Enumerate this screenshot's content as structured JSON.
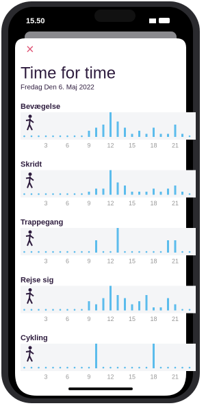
{
  "status": {
    "time": "15.50"
  },
  "header": {
    "close": "×",
    "title": "Time for time",
    "subtitle": "Fredag Den 6. Maj 2022"
  },
  "charts": [
    {
      "type": "bar",
      "title": "Bevægelse",
      "color": "#5bbcec",
      "x": [
        0,
        1,
        2,
        3,
        4,
        5,
        6,
        7,
        8,
        9,
        10,
        11,
        12,
        13,
        14,
        15,
        16,
        17,
        18,
        19,
        20,
        21,
        22,
        23
      ],
      "values": [
        0,
        0,
        0,
        0,
        0,
        0,
        0,
        0,
        0,
        2,
        3,
        4,
        8,
        5,
        3,
        1,
        2,
        1,
        3,
        1,
        1,
        4,
        1,
        0
      ],
      "xlim": [
        0,
        23
      ],
      "ylim": [
        0,
        8
      ],
      "xticks": [
        3,
        6,
        9,
        12,
        15,
        18,
        21
      ]
    },
    {
      "type": "bar",
      "title": "Skridt",
      "color": "#5bbcec",
      "x": [
        0,
        1,
        2,
        3,
        4,
        5,
        6,
        7,
        8,
        9,
        10,
        11,
        12,
        13,
        14,
        15,
        16,
        17,
        18,
        19,
        20,
        21,
        22,
        23
      ],
      "values": [
        0,
        0,
        0,
        0,
        0,
        0,
        0,
        0,
        0,
        1,
        2,
        2,
        8,
        4,
        3,
        1,
        1,
        1,
        2,
        1,
        2,
        3,
        1,
        0
      ],
      "xlim": [
        0,
        23
      ],
      "ylim": [
        0,
        8
      ],
      "xticks": [
        3,
        6,
        9,
        12,
        15,
        18,
        21
      ]
    },
    {
      "type": "bar",
      "title": "Trappegang",
      "color": "#5bbcec",
      "x": [
        0,
        1,
        2,
        3,
        4,
        5,
        6,
        7,
        8,
        9,
        10,
        11,
        12,
        13,
        14,
        15,
        16,
        17,
        18,
        19,
        20,
        21,
        22,
        23
      ],
      "values": [
        0,
        0,
        0,
        0,
        0,
        0,
        0,
        0,
        0,
        0,
        4,
        0,
        0,
        8,
        0,
        0,
        0,
        0,
        0,
        0,
        4,
        4,
        0,
        0
      ],
      "xlim": [
        0,
        23
      ],
      "ylim": [
        0,
        8
      ],
      "xticks": [
        3,
        6,
        9,
        12,
        15,
        18,
        21
      ]
    },
    {
      "type": "bar",
      "title": "Rejse sig",
      "color": "#5bbcec",
      "x": [
        0,
        1,
        2,
        3,
        4,
        5,
        6,
        7,
        8,
        9,
        10,
        11,
        12,
        13,
        14,
        15,
        16,
        17,
        18,
        19,
        20,
        21,
        22,
        23
      ],
      "values": [
        0,
        0,
        0,
        0,
        0,
        0,
        0,
        0,
        0,
        3,
        2,
        4,
        8,
        5,
        4,
        2,
        3,
        5,
        1,
        1,
        4,
        2,
        0,
        0
      ],
      "xlim": [
        0,
        23
      ],
      "ylim": [
        0,
        8
      ],
      "xticks": [
        3,
        6,
        9,
        12,
        15,
        18,
        21
      ]
    },
    {
      "type": "bar",
      "title": "Cykling",
      "color": "#5bbcec",
      "x": [
        0,
        1,
        2,
        3,
        4,
        5,
        6,
        7,
        8,
        9,
        10,
        11,
        12,
        13,
        14,
        15,
        16,
        17,
        18,
        19,
        20,
        21,
        22,
        23
      ],
      "values": [
        0,
        0,
        0,
        0,
        0,
        0,
        0,
        0,
        0,
        0,
        8,
        0,
        0,
        0,
        0,
        0,
        0,
        0,
        8,
        0,
        0,
        0,
        0,
        0
      ],
      "xlim": [
        0,
        23
      ],
      "ylim": [
        0,
        8
      ],
      "xticks": [
        3,
        6,
        9,
        12,
        15,
        18,
        21
      ]
    }
  ]
}
